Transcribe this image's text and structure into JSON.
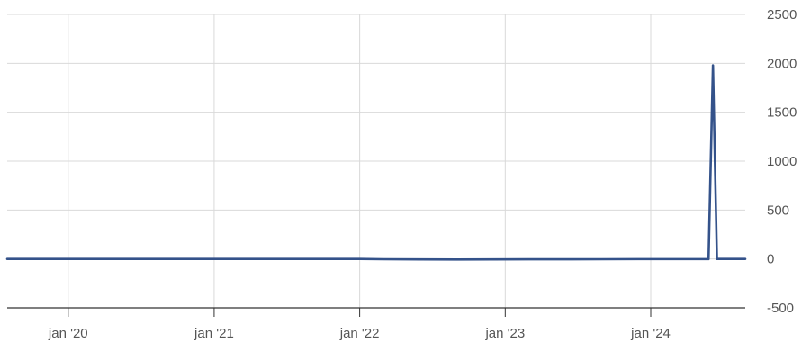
{
  "chart_data": {
    "type": "line",
    "title": "",
    "xlabel": "",
    "ylabel": "",
    "grid": true,
    "y_axis_side": "right",
    "xlim": [
      "2019-08-01",
      "2024-08-25"
    ],
    "ylim": [
      -500,
      2500
    ],
    "x_ticks": [
      {
        "date": "2020-01-01",
        "label": "jan '20"
      },
      {
        "date": "2021-01-01",
        "label": "jan '21"
      },
      {
        "date": "2022-01-01",
        "label": "jan '22"
      },
      {
        "date": "2023-01-01",
        "label": "jan '23"
      },
      {
        "date": "2024-01-01",
        "label": "jan '24"
      }
    ],
    "y_ticks": [
      {
        "value": 2500,
        "label": "2500"
      },
      {
        "value": 2000,
        "label": "2000"
      },
      {
        "value": 1500,
        "label": "1500"
      },
      {
        "value": 1000,
        "label": "1000"
      },
      {
        "value": 500,
        "label": "500"
      },
      {
        "value": 0,
        "label": "0"
      },
      {
        "value": -500,
        "label": "-500"
      }
    ],
    "colors": {
      "line": "#34528a",
      "grid": "#d9d9d9",
      "axis": "#333333",
      "tick_text": "#555555"
    },
    "series": [
      {
        "points": [
          {
            "x": "2019-08-01",
            "y": 0
          },
          {
            "x": "2022-01-01",
            "y": 0
          },
          {
            "x": "2022-03-01",
            "y": -3
          },
          {
            "x": "2022-06-01",
            "y": -5
          },
          {
            "x": "2022-09-01",
            "y": -6
          },
          {
            "x": "2022-12-01",
            "y": -5
          },
          {
            "x": "2023-03-01",
            "y": -4
          },
          {
            "x": "2023-06-01",
            "y": -4
          },
          {
            "x": "2023-09-01",
            "y": -3
          },
          {
            "x": "2023-12-01",
            "y": -2
          },
          {
            "x": "2024-03-01",
            "y": -2
          },
          {
            "x": "2024-05-25",
            "y": -2
          },
          {
            "x": "2024-06-05",
            "y": 1980
          },
          {
            "x": "2024-06-15",
            "y": 0
          },
          {
            "x": "2024-08-25",
            "y": 0
          }
        ]
      }
    ]
  }
}
